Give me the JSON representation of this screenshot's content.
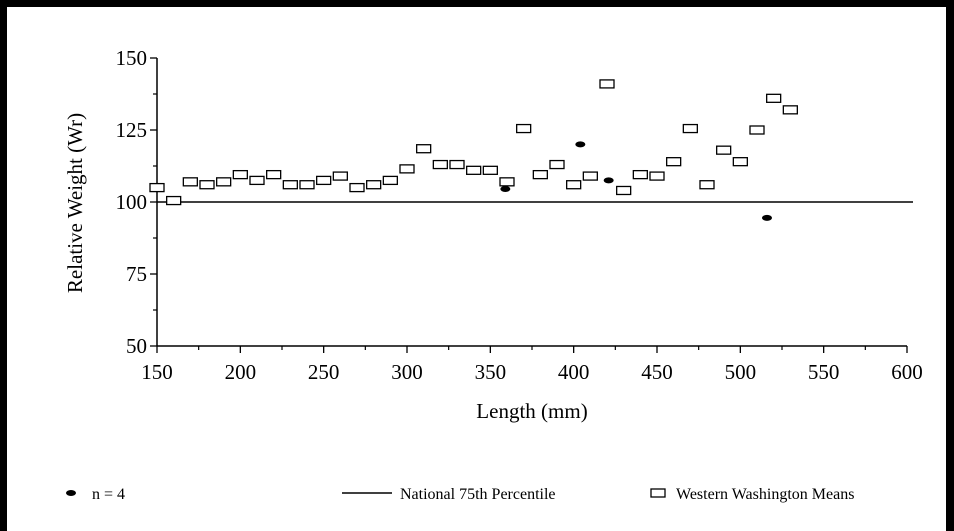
{
  "chart_data": {
    "type": "scatter",
    "xlabel": "Length (mm)",
    "ylabel": "Relative Weight (Wr)",
    "xlim": [
      150,
      600
    ],
    "ylim": [
      50,
      150
    ],
    "x_ticks": [
      150,
      200,
      250,
      300,
      350,
      400,
      450,
      500,
      550,
      600
    ],
    "y_ticks": [
      50,
      75,
      100,
      125,
      150
    ],
    "grid": false,
    "legend_position": "bottom",
    "reference_line": {
      "name": "National 75th Percentile",
      "y": 100
    },
    "series": [
      {
        "name": "Western Washington Means",
        "marker": "open-rectangle",
        "points": [
          [
            150,
            105
          ],
          [
            160,
            100.5
          ],
          [
            170,
            107
          ],
          [
            180,
            106
          ],
          [
            190,
            107
          ],
          [
            200,
            109.5
          ],
          [
            210,
            107.5
          ],
          [
            220,
            109.5
          ],
          [
            230,
            106
          ],
          [
            240,
            106
          ],
          [
            250,
            107.5
          ],
          [
            260,
            109
          ],
          [
            270,
            105
          ],
          [
            280,
            106
          ],
          [
            290,
            107.5
          ],
          [
            300,
            111.5
          ],
          [
            310,
            118.5
          ],
          [
            320,
            113
          ],
          [
            330,
            113
          ],
          [
            340,
            111
          ],
          [
            350,
            111
          ],
          [
            360,
            107
          ],
          [
            370,
            125.5
          ],
          [
            380,
            109.5
          ],
          [
            390,
            113
          ],
          [
            400,
            106
          ],
          [
            410,
            109
          ],
          [
            420,
            141
          ],
          [
            430,
            104
          ],
          [
            440,
            109.5
          ],
          [
            450,
            109
          ],
          [
            460,
            114
          ],
          [
            470,
            125.5
          ],
          [
            480,
            106
          ],
          [
            490,
            118
          ],
          [
            500,
            114
          ],
          [
            510,
            125
          ],
          [
            520,
            136
          ],
          [
            530,
            132
          ]
        ]
      },
      {
        "name": "n = 4",
        "marker": "filled-ellipse",
        "points": [
          [
            359,
            104.5
          ],
          [
            404,
            120
          ],
          [
            421,
            107.5
          ],
          [
            516,
            94.5
          ]
        ]
      }
    ]
  }
}
